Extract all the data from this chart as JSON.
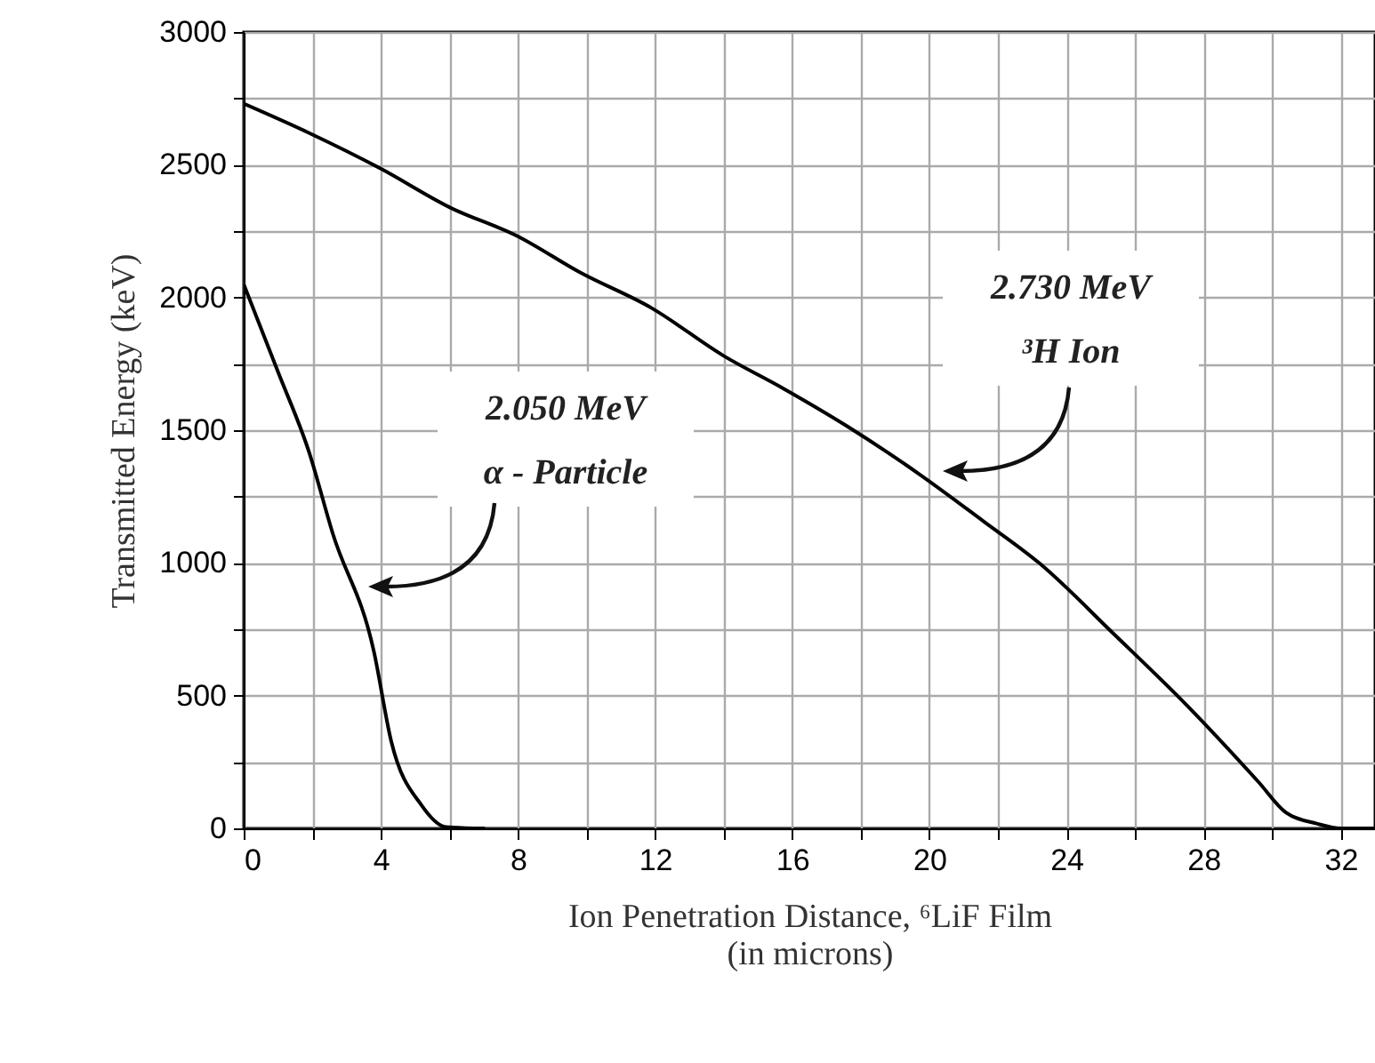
{
  "chart_data": {
    "type": "line",
    "xlabel": "Ion Penetration Distance, ⁶LiF Film\n(in microns)",
    "ylabel": "Transmitted Energy (keV)",
    "xlim": [
      0,
      33
    ],
    "ylim": [
      0,
      3000
    ],
    "xticks": [
      0,
      {
        "value": 2,
        "label": null
      },
      4,
      {
        "value": 6,
        "label": null
      },
      8,
      {
        "value": 10,
        "label": null
      },
      12,
      {
        "value": 14,
        "label": null
      },
      16,
      {
        "value": 18,
        "label": null
      },
      20,
      {
        "value": 22,
        "label": null
      },
      24,
      {
        "value": 26,
        "label": null
      },
      28,
      {
        "value": 30,
        "label": null
      },
      32
    ],
    "yticks": [
      0,
      {
        "value": 250,
        "label": null
      },
      500,
      {
        "value": 750,
        "label": null
      },
      1000,
      {
        "value": 1250,
        "label": null
      },
      1500,
      {
        "value": 1750,
        "label": null
      },
      2000,
      {
        "value": 2250,
        "label": null
      },
      2500,
      {
        "value": 2750,
        "label": null
      },
      3000
    ],
    "grid": true,
    "series": [
      {
        "color": "#000000",
        "x": [
          0,
          1,
          1.9,
          2.6,
          3.8,
          4.3,
          5.2,
          5.9,
          7
        ],
        "values": [
          2050,
          1720,
          1420,
          1110,
          665,
          330,
          85,
          5,
          0
        ]
      },
      {
        "color": "#000000",
        "x": [
          0,
          1.9,
          4,
          6,
          8,
          9.8,
          11.9,
          14,
          15.7,
          17.6,
          19.7,
          21.6,
          23.2,
          25.4,
          27.5,
          29.6,
          30.4,
          31.3,
          32,
          33
        ],
        "values": [
          2730,
          2620,
          2485,
          2340,
          2230,
          2095,
          1960,
          1780,
          1660,
          1515,
          1335,
          1155,
          1000,
          730,
          465,
          175,
          60,
          18,
          0,
          0
        ]
      }
    ],
    "annotations": [
      "2.050 MeV\nα - Particle",
      "2.730 MeV\n³H Ion"
    ]
  }
}
